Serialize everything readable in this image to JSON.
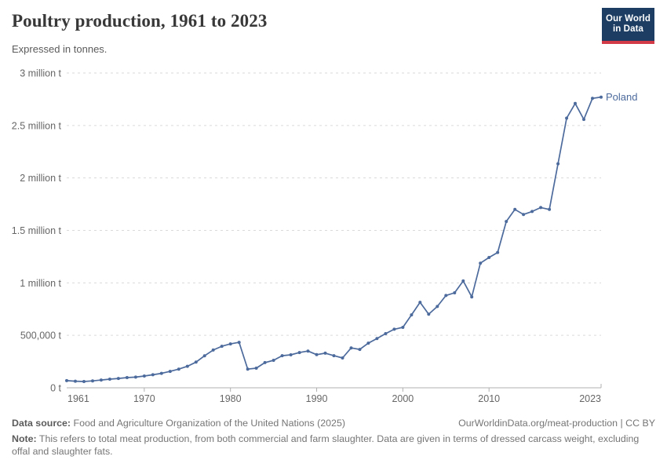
{
  "header": {
    "title": "Poultry production, 1961 to 2023",
    "subtitle": "Expressed in tonnes.",
    "logo": {
      "line1": "Our World",
      "line2": "in Data"
    }
  },
  "chart_data": {
    "type": "line",
    "title": "Poultry production, 1961 to 2023",
    "subtitle": "Expressed in tonnes.",
    "unit": "tonnes",
    "xlabel": "",
    "ylabel": "",
    "xlim": [
      1961,
      2023
    ],
    "ylim": [
      0,
      3000000
    ],
    "grid": "horizontal-dashed",
    "legend_position": "end-of-line-label",
    "entity_label": "Poland",
    "line_color": "#4C6A9C",
    "x_ticks": [
      {
        "value": 1961,
        "label": "1961"
      },
      {
        "value": 1970,
        "label": "1970"
      },
      {
        "value": 1980,
        "label": "1980"
      },
      {
        "value": 1990,
        "label": "1990"
      },
      {
        "value": 2000,
        "label": "2000"
      },
      {
        "value": 2010,
        "label": "2010"
      },
      {
        "value": 2023,
        "label": "2023"
      }
    ],
    "y_ticks": [
      {
        "value": 0,
        "label": "0 t"
      },
      {
        "value": 500000,
        "label": "500,000 t"
      },
      {
        "value": 1000000,
        "label": "1 million t"
      },
      {
        "value": 1500000,
        "label": "1.5 million t"
      },
      {
        "value": 2000000,
        "label": "2 million t"
      },
      {
        "value": 2500000,
        "label": "2.5 million t"
      },
      {
        "value": 3000000,
        "label": "3 million t"
      }
    ],
    "years": [
      1961,
      1962,
      1963,
      1964,
      1965,
      1966,
      1967,
      1968,
      1969,
      1970,
      1971,
      1972,
      1973,
      1974,
      1975,
      1976,
      1977,
      1978,
      1979,
      1980,
      1981,
      1982,
      1983,
      1984,
      1985,
      1986,
      1987,
      1988,
      1989,
      1990,
      1991,
      1992,
      1993,
      1994,
      1995,
      1996,
      1997,
      1998,
      1999,
      2000,
      2001,
      2002,
      2003,
      2004,
      2005,
      2006,
      2007,
      2008,
      2009,
      2010,
      2011,
      2012,
      2013,
      2014,
      2015,
      2016,
      2017,
      2018,
      2019,
      2020,
      2021,
      2022,
      2023
    ],
    "series": [
      {
        "name": "Poland",
        "color": "#4C6A9C",
        "values": [
          68000,
          63000,
          60000,
          66000,
          74000,
          82000,
          89000,
          97000,
          102000,
          112000,
          124000,
          138000,
          156000,
          178000,
          205000,
          245000,
          305000,
          360000,
          396000,
          418000,
          433000,
          178000,
          187000,
          240000,
          262000,
          306000,
          314000,
          336000,
          350000,
          316000,
          330000,
          306000,
          284000,
          380000,
          366000,
          426000,
          470000,
          516000,
          558000,
          576000,
          695000,
          815000,
          702000,
          775000,
          880000,
          905000,
          1018000,
          866000,
          1188000,
          1242000,
          1290000,
          1585000,
          1700000,
          1652000,
          1680000,
          1718000,
          1700000,
          2135000,
          2570000,
          2710000,
          2558000,
          2758000,
          2770000
        ]
      }
    ]
  },
  "footer": {
    "datasource_label": "Data source:",
    "datasource_text": " Food and Agriculture Organization of the United Nations (2025)",
    "credit": "OurWorldinData.org/meat-production | CC BY",
    "note_label": "Note:",
    "note_text": " This refers to total meat production, from both commercial and farm slaughter. Data are given in terms of dressed carcass weight, excluding offal and slaughter fats."
  },
  "colors": {
    "line": "#4C6A9C",
    "grid": "#dadada",
    "axis": "#b0b0b0",
    "tick_label": "#666666",
    "title": "#383838",
    "subtitle": "#5b5b5b",
    "footer": "#757575",
    "logo_bg": "#1d3d63",
    "logo_red": "#d23a47"
  }
}
